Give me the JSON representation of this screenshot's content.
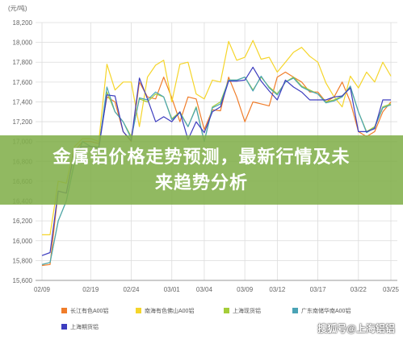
{
  "chart_data": {
    "type": "line",
    "unit_label": "(元/吨)",
    "ylim": [
      15600,
      18200
    ],
    "y_ticks": [
      "15,600",
      "15,800",
      "16,000",
      "16,200",
      "16,400",
      "16,600",
      "16,800",
      "17,000",
      "17,200",
      "17,400",
      "17,600",
      "17,800",
      "18,000",
      "18,200"
    ],
    "y_tick_values": [
      15600,
      15800,
      16000,
      16200,
      16400,
      16600,
      16800,
      17000,
      17200,
      17400,
      17600,
      17800,
      18000,
      18200
    ],
    "x": [
      0,
      1,
      2,
      3,
      4,
      5,
      6,
      7,
      8,
      9,
      10,
      11,
      12,
      13,
      14,
      15,
      16,
      17,
      18,
      19,
      20,
      21,
      22,
      23,
      24,
      25,
      26,
      27,
      28,
      29,
      30,
      31,
      32,
      33,
      34,
      35,
      36,
      37,
      38,
      39,
      40,
      41,
      42,
      43
    ],
    "x_ticks": [
      "02/09",
      "02/19",
      "02/24",
      "03/01",
      "03/04",
      "03/09",
      "03/12",
      "03/17",
      "03/22",
      "03/25"
    ],
    "x_tick_index": [
      0,
      6,
      11,
      16,
      20,
      25,
      29,
      34,
      39,
      43
    ],
    "grid": true,
    "legend_position": "bottom",
    "series": [
      {
        "name": "长江有色A00铝",
        "color": "#f07d2a",
        "values": [
          15750,
          15760,
          16500,
          16480,
          16900,
          17000,
          17000,
          16980,
          17450,
          17400,
          17100,
          17000,
          17600,
          17450,
          17430,
          17650,
          17440,
          17200,
          17450,
          17430,
          17120,
          17320,
          17310,
          17650,
          17450,
          17200,
          17400,
          17380,
          17360,
          17650,
          17700,
          17650,
          17600,
          17500,
          17500,
          17400,
          17450,
          17600,
          17400,
          17100,
          17050,
          17100,
          17300,
          17400
        ]
      },
      {
        "name": "南海有色佛山A00铝",
        "color": "#f5d52a",
        "values": [
          16060,
          16060,
          16600,
          16580,
          16950,
          17030,
          17030,
          17000,
          17780,
          17520,
          17600,
          17600,
          17150,
          17650,
          17770,
          17820,
          17400,
          17780,
          17800,
          17480,
          17430,
          17620,
          17600,
          18010,
          17820,
          17850,
          18020,
          17830,
          17850,
          17700,
          17800,
          17900,
          17950,
          17860,
          17800,
          17590,
          17450,
          17350,
          17660,
          17540,
          17700,
          17600,
          17800,
          17660
        ]
      },
      {
        "name": "上海现货铝",
        "color": "#a5cd39",
        "values": [
          15760,
          15780,
          16200,
          16400,
          16800,
          17000,
          16950,
          16950,
          17500,
          17300,
          17200,
          17050,
          17430,
          17400,
          17480,
          17450,
          17230,
          17300,
          17150,
          17350,
          17000,
          17350,
          17400,
          17620,
          17620,
          17650,
          17520,
          17650,
          17550,
          17480,
          17600,
          17650,
          17560,
          17520,
          17480,
          17400,
          17420,
          17460,
          17550,
          17300,
          17100,
          17150,
          17350,
          17380
        ]
      },
      {
        "name": "广东南储华南A00铝",
        "color": "#4aa3b5",
        "values": [
          15760,
          15780,
          16200,
          16400,
          16780,
          17000,
          16950,
          16940,
          17550,
          17300,
          17200,
          17030,
          17440,
          17420,
          17500,
          17450,
          17220,
          17290,
          17150,
          17340,
          17000,
          17340,
          17380,
          17620,
          17620,
          17650,
          17510,
          17660,
          17540,
          17470,
          17600,
          17640,
          17550,
          17510,
          17480,
          17390,
          17410,
          17450,
          17560,
          17300,
          17090,
          17140,
          17340,
          17370
        ]
      },
      {
        "name": "上海期货铝",
        "color": "#3d3dbf",
        "values": [
          15850,
          15880,
          16500,
          16480,
          16900,
          16950,
          16950,
          16930,
          17470,
          17460,
          17100,
          17010,
          17640,
          17430,
          17200,
          17250,
          17200,
          17300,
          17020,
          17200,
          17090,
          17300,
          17350,
          17610,
          17610,
          17620,
          17750,
          17610,
          17510,
          17420,
          17620,
          17550,
          17500,
          17420,
          17420,
          17420,
          17450,
          17460,
          17540,
          17100,
          17100,
          17130,
          17420,
          17420
        ]
      }
    ]
  },
  "banner": {
    "line1": "金属铝价格走势预测，最新行情及未",
    "line2": "来趋势分析"
  },
  "watermark": "搜狐号@上海铝铝"
}
